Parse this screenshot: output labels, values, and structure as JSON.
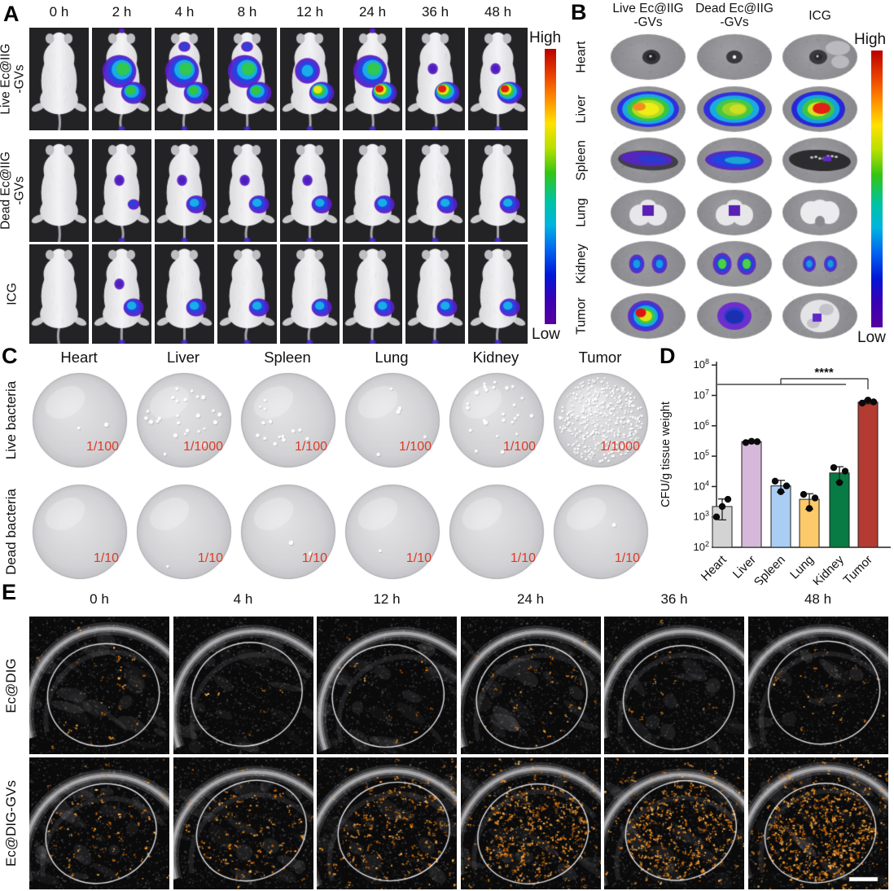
{
  "panelA": {
    "label": "A",
    "timepoints": [
      "0 h",
      "2 h",
      "4 h",
      "8 h",
      "12 h",
      "24 h",
      "36 h",
      "48 h"
    ],
    "rows": [
      {
        "label_lines": "Live Ec@IIG\n-GVs",
        "signals": [
          {
            "liver": 0,
            "tumor": 0,
            "neck": 0
          },
          {
            "liver": 3,
            "tumor": 3,
            "neck": 1
          },
          {
            "liver": 3,
            "tumor": 3,
            "neck": 2
          },
          {
            "liver": 3,
            "tumor": 3,
            "neck": 2
          },
          {
            "liver": 2,
            "tumor": 4,
            "neck": 0
          },
          {
            "liver": 3,
            "tumor": 5,
            "neck": 1
          },
          {
            "liver": 1,
            "tumor": 5,
            "neck": 0
          },
          {
            "liver": 1,
            "tumor": 5,
            "neck": 0
          }
        ]
      },
      {
        "label_lines": "Dead Ec@IIG\n-GVs",
        "signals": [
          {
            "liver": 0,
            "tumor": 0,
            "neck": 0
          },
          {
            "liver": 1,
            "tumor": 1,
            "neck": 0
          },
          {
            "liver": 1,
            "tumor": 2,
            "neck": 0
          },
          {
            "liver": 1,
            "tumor": 2,
            "neck": 0
          },
          {
            "liver": 1,
            "tumor": 2,
            "neck": 0
          },
          {
            "liver": 0,
            "tumor": 2,
            "neck": 0
          },
          {
            "liver": 0,
            "tumor": 2,
            "neck": 0
          },
          {
            "liver": 0,
            "tumor": 2,
            "neck": 0
          }
        ]
      },
      {
        "label_lines": "ICG",
        "signals": [
          {
            "liver": 0,
            "tumor": 0,
            "neck": 0
          },
          {
            "liver": 1,
            "tumor": 2,
            "neck": 0
          },
          {
            "liver": 0,
            "tumor": 2,
            "neck": 0
          },
          {
            "liver": 0,
            "tumor": 2,
            "neck": 0
          },
          {
            "liver": 0,
            "tumor": 2,
            "neck": 0
          },
          {
            "liver": 0,
            "tumor": 2,
            "neck": 0
          },
          {
            "liver": 0,
            "tumor": 2,
            "neck": 0
          },
          {
            "liver": 0,
            "tumor": 2,
            "neck": 0
          }
        ]
      }
    ],
    "colorbar": {
      "high": "High",
      "low": "Low",
      "colors": [
        "#b80000",
        "#e83c00",
        "#ff8c00",
        "#ffe100",
        "#b8e000",
        "#35c415",
        "#00c4a0",
        "#00b4e0",
        "#0064f0",
        "#0018d8",
        "#3a00b4",
        "#56009e"
      ]
    }
  },
  "panelB": {
    "label": "B",
    "column_headers": [
      "Live Ec@IIG\n-GVs",
      "Dead Ec@IIG\n-GVs",
      "ICG"
    ],
    "row_headers": [
      "Heart",
      "Liver",
      "Spleen",
      "Lung",
      "Kidney",
      "Tumor"
    ],
    "cells": [
      [
        "heart-dark",
        "heart-dark2",
        "heart-light"
      ],
      [
        "liver-warm",
        "liver-green",
        "liver-red"
      ],
      [
        "spleen-purple",
        "spleen-blue",
        "spleen-dark"
      ],
      [
        "lung-purple",
        "lung-purple2",
        "lung-white"
      ],
      [
        "kidney-blue",
        "kidney-green",
        "kidney-blue-small"
      ],
      [
        "tumor-hot",
        "tumor-blue",
        "tumor-white-purple"
      ]
    ],
    "colorbar": {
      "high": "High",
      "low": "Low"
    }
  },
  "panelC": {
    "label": "C",
    "column_headers": [
      "Heart",
      "Liver",
      "Spleen",
      "Lung",
      "Kidney",
      "Tumor"
    ],
    "rows": [
      {
        "label": "Live bacteria",
        "dilutions": [
          "1/100",
          "1/1000",
          "1/100",
          "1/100",
          "1/100",
          "1/1000"
        ],
        "colonies": [
          2,
          26,
          14,
          5,
          25,
          430
        ]
      },
      {
        "label": "Dead bacteria",
        "dilutions": [
          "1/10",
          "1/10",
          "1/10",
          "1/10",
          "1/10",
          "1/10"
        ],
        "colonies": [
          0,
          1,
          2,
          1,
          0,
          1
        ]
      }
    ],
    "dilution_color": "#dd3a26"
  },
  "panelD": {
    "label": "D"
  },
  "chart_data": {
    "type": "bar",
    "categories": [
      "Heart",
      "Liver",
      "Spleen",
      "Lung",
      "Kidney",
      "Tumor"
    ],
    "values": [
      2200,
      300000,
      10500,
      3800,
      28000,
      6000000
    ],
    "points": [
      [
        1000,
        2200,
        3800
      ],
      [
        280000,
        310000,
        300000
      ],
      [
        15000,
        6800,
        10500
      ],
      [
        5500,
        1900,
        4200
      ],
      [
        42000,
        13500,
        32000
      ],
      [
        5600000,
        7000000,
        6100000
      ]
    ],
    "error_low": [
      800,
      270000,
      6500,
      1800,
      14000,
      5300000
    ],
    "error_high": [
      3900,
      330000,
      16000,
      5800,
      45000,
      7100000
    ],
    "bar_colors": [
      "#d3d3d3",
      "#d6b9da",
      "#aacdf4",
      "#fcca6a",
      "#087a43",
      "#b43b32"
    ],
    "ylabel": "CFU/g tissue weight",
    "yscale": "log",
    "ylim": [
      100,
      100000000
    ],
    "ytick_exponents": [
      2,
      3,
      4,
      5,
      6,
      7,
      8
    ],
    "grid": false,
    "significance": {
      "label": "****"
    }
  },
  "panelE": {
    "label": "E",
    "timepoints": [
      "0 h",
      "4 h",
      "12 h",
      "24 h",
      "36 h",
      "48 h"
    ],
    "rows": [
      {
        "label": "Ec@DIG",
        "speckle_density": [
          34,
          8,
          14,
          44,
          18,
          30
        ]
      },
      {
        "label": "Ec@DIG-GVs",
        "speckle_density": [
          80,
          120,
          230,
          400,
          420,
          560
        ]
      }
    ],
    "has_scale_bar": true
  }
}
